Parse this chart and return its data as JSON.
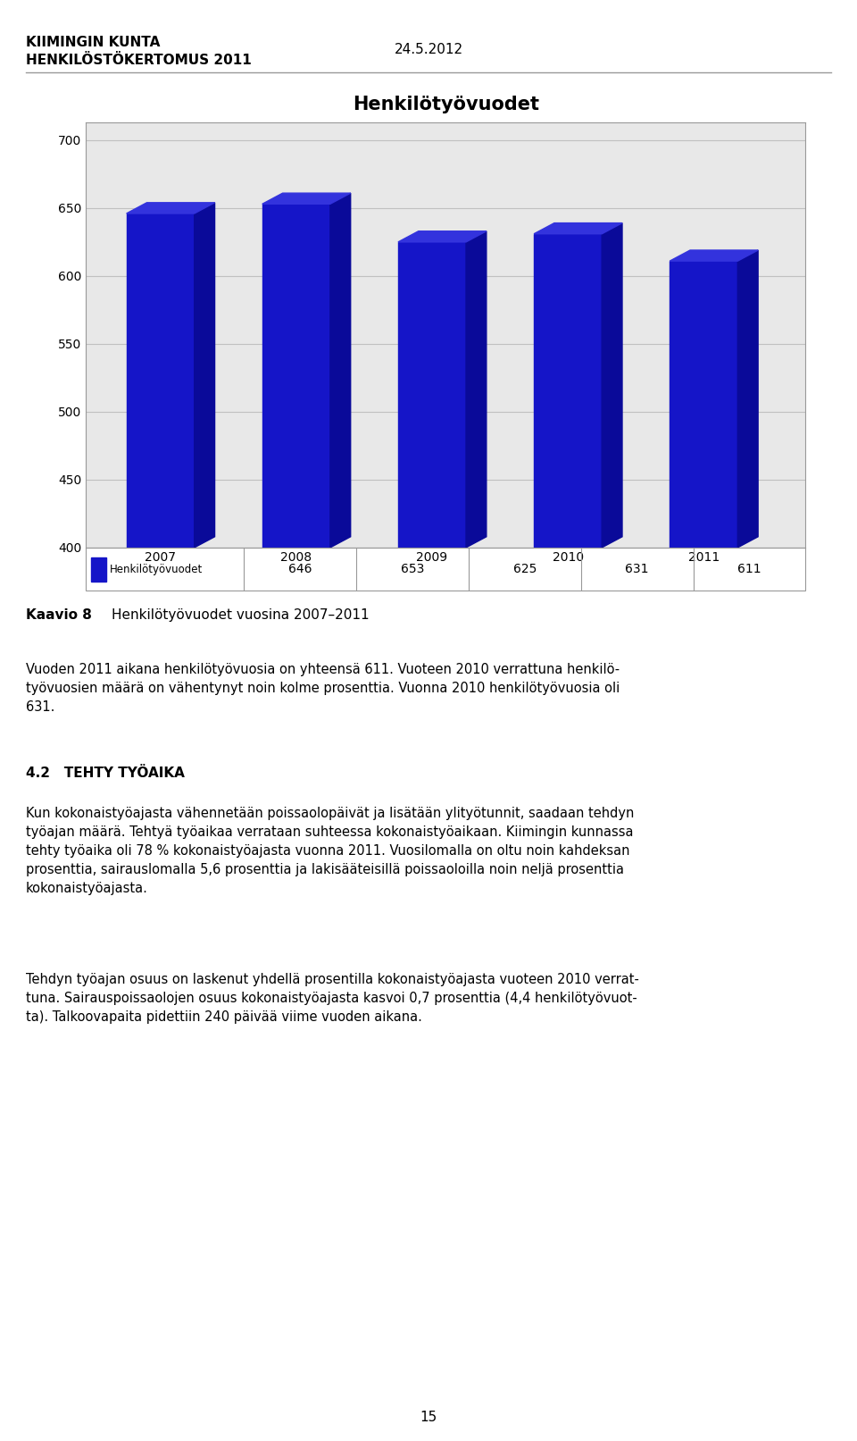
{
  "header_line1": "KIIMINGIN KUNTA",
  "header_line2": "HENKILÖSTÖKERTOMUS 2011",
  "date": "24.5.2012",
  "chart_title": "Henkilötyövuodet",
  "categories": [
    "2007",
    "2008",
    "2009",
    "2010",
    "2011"
  ],
  "values": [
    646,
    653,
    625,
    631,
    611
  ],
  "bar_color": "#1515c8",
  "bar_color_top": "#3333dd",
  "bar_color_side": "#0a0a99",
  "ylim_min": 400,
  "ylim_max": 700,
  "yticks": [
    400,
    450,
    500,
    550,
    600,
    650,
    700
  ],
  "legend_label": "Henkilötyövuodet",
  "caption_bold": "Kaavio 8",
  "caption_text": "Henkilötyövuodet vuosina 2007–2011",
  "paragraph1": "Vuoden 2011 aikana henkilötyövuosia on yhteensä 611. Vuoteen 2010 verrattuna henkilö-\ntyövuosien määrä on vähentynyt noin kolme prosenttia. Vuonna 2010 henkilötyövuosia oli\n631.",
  "section_title": "4.2   TEHTY TYÖAIKA",
  "paragraph2": "Kun kokonaistyöajasta vähennetään poissaolopäivät ja lisätään ylityötunnit, saadaan tehdyn\ntyöajan määrä. Tehtyä työaikaa verrataan suhteessa kokonaistyöaikaan. Kiimingin kunnassa\ntehty työaika oli 78 % kokonaistyöajasta vuonna 2011. Vuosilomalla on oltu noin kahdeksan\nprosenttia, sairauslomalla 5,6 prosenttia ja lakisääteisillä poissaoloilla noin neljä prosenttia\nkokonaistyöajasta.",
  "paragraph3": "Tehdyn työajan osuus on laskenut yhdellä prosentilla kokonaistyöajasta vuoteen 2010 verrat-\ntuna. Sairauspoissaolojen osuus kokonaistyöajasta kasvoi 0,7 prosenttia (4,4 henkilötyövuot-\nta). Talkoovapaita pidettiin 240 päivää viime vuoden aikana.",
  "page_number": "15",
  "background_color": "#ffffff",
  "plot_bg_color": "#e8e8e8",
  "grid_color": "#c0c0c0",
  "chart_border_color": "#999999"
}
